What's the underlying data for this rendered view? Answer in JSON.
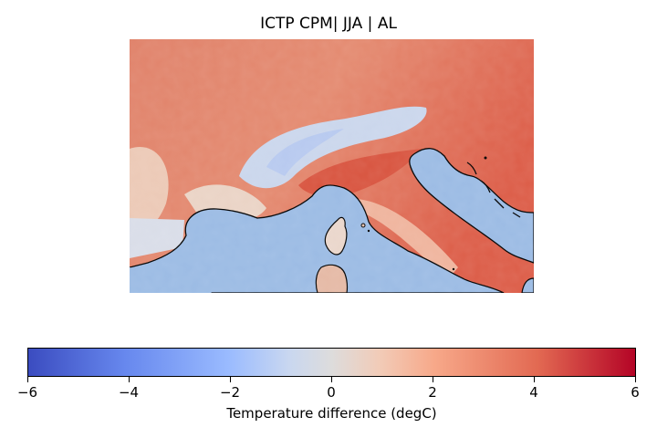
{
  "title": "ICTP CPM| JJA | AL",
  "map": {
    "description_colors": {
      "sea": "#9bbbe4",
      "land_warm": "#e7765b",
      "land_neutral": "#e6d6cd",
      "alps_cool": "#c0d1ef",
      "coastline": "#000000"
    }
  },
  "colorbar": {
    "label": "Temperature difference (degC)",
    "min": -6,
    "max": 6,
    "ticks": [
      "−6",
      "−4",
      "−2",
      "0",
      "2",
      "4",
      "6"
    ],
    "colormap_stops": [
      "#3b4cc0",
      "#6788ee",
      "#9abbff",
      "#c9d7f0",
      "#dddcdc",
      "#f2cbb7",
      "#f7a889",
      "#e26952",
      "#b40426"
    ]
  }
}
